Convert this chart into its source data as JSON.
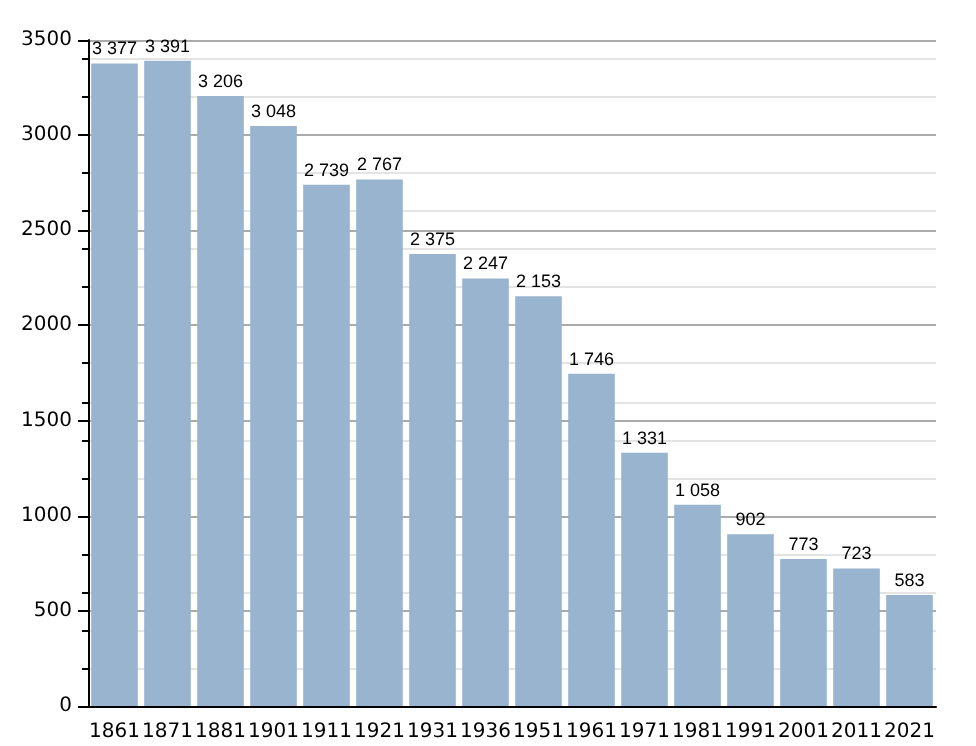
{
  "chart_data": {
    "type": "bar",
    "categories": [
      "1861",
      "1871",
      "1881",
      "1901",
      "1911",
      "1921",
      "1931",
      "1936",
      "1951",
      "1961",
      "1971",
      "1981",
      "1991",
      "2001",
      "2011",
      "2021"
    ],
    "values": [
      3377,
      3391,
      3206,
      3048,
      2739,
      2767,
      2375,
      2247,
      2153,
      1746,
      1331,
      1058,
      902,
      773,
      723,
      583
    ],
    "value_labels": [
      "3 377",
      "3 391",
      "3 206",
      "3 048",
      "2 739",
      "2 767",
      "2 375",
      "2 247",
      "2 153",
      "1 746",
      "1 331",
      "1 058",
      "902",
      "773",
      "723",
      "583"
    ],
    "color": "#98b4cf",
    "ylim": [
      0,
      3500
    ],
    "yticks": [
      0,
      500,
      1000,
      1500,
      2000,
      2500,
      3000,
      3500
    ],
    "grid": "y"
  }
}
